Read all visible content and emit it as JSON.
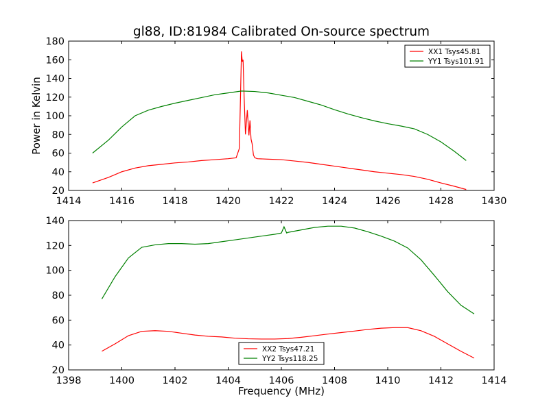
{
  "chart_data": [
    {
      "type": "line",
      "title": "gl88, ID:81984 Calibrated On-source spectrum",
      "xlabel": "",
      "ylabel": "Power in Kelvin",
      "xlim": [
        1414,
        1430
      ],
      "ylim": [
        20,
        180
      ],
      "xticks": [
        1414,
        1416,
        1418,
        1420,
        1422,
        1424,
        1426,
        1428,
        1430
      ],
      "yticks": [
        20,
        40,
        60,
        80,
        100,
        120,
        140,
        160,
        180
      ],
      "grid": false,
      "legend": "top-right",
      "series": [
        {
          "name": "XX1 Tsys45.81",
          "color": "#ff0000",
          "x": [
            1414.9,
            1415.5,
            1416.0,
            1416.5,
            1417.0,
            1417.5,
            1418.0,
            1418.5,
            1419.0,
            1419.5,
            1420.0,
            1420.3,
            1420.42,
            1420.5,
            1420.53,
            1420.56,
            1420.6,
            1420.65,
            1420.72,
            1420.78,
            1420.82,
            1420.86,
            1420.9,
            1420.95,
            1421.0,
            1421.1,
            1421.5,
            1422.0,
            1422.5,
            1423.0,
            1423.5,
            1424.0,
            1424.5,
            1425.0,
            1425.5,
            1426.0,
            1426.5,
            1427.0,
            1427.5,
            1428.0,
            1428.5,
            1428.95
          ],
          "values": [
            28,
            34,
            40,
            44,
            46.5,
            48,
            49.5,
            50.5,
            52,
            53,
            54,
            55,
            65,
            169,
            158,
            160,
            120,
            80,
            106,
            79,
            95,
            75,
            70,
            58,
            55,
            54,
            53.5,
            53,
            51.5,
            50,
            48,
            46,
            44,
            42,
            40,
            38.5,
            37,
            35,
            32,
            28,
            24.5,
            21
          ]
        },
        {
          "name": "YY1 Tsys101.91",
          "color": "#008000",
          "x": [
            1414.9,
            1415.5,
            1416.0,
            1416.5,
            1417.0,
            1417.5,
            1418.0,
            1418.5,
            1419.0,
            1419.5,
            1420.0,
            1420.5,
            1421.0,
            1421.5,
            1422.0,
            1422.5,
            1423.0,
            1423.5,
            1424.0,
            1424.5,
            1425.0,
            1425.5,
            1426.0,
            1426.5,
            1427.0,
            1427.5,
            1428.0,
            1428.5,
            1428.95
          ],
          "values": [
            60,
            74,
            88,
            100,
            106,
            110,
            113.5,
            116.5,
            119.5,
            122.5,
            124.5,
            126.5,
            126,
            124.5,
            122,
            119.5,
            115.5,
            111.5,
            106.5,
            102,
            98,
            94.5,
            91.5,
            89,
            86,
            80,
            72,
            62,
            52
          ]
        }
      ]
    },
    {
      "type": "line",
      "title": "",
      "xlabel": "Frequency (MHz)",
      "ylabel": "",
      "xlim": [
        1398,
        1414
      ],
      "ylim": [
        20,
        140
      ],
      "xticks": [
        1398,
        1400,
        1402,
        1404,
        1406,
        1408,
        1410,
        1412,
        1414
      ],
      "yticks": [
        20,
        40,
        60,
        80,
        100,
        120,
        140
      ],
      "grid": false,
      "legend": "bottom-center",
      "series": [
        {
          "name": "XX2 Tsys47.21",
          "color": "#ff0000",
          "x": [
            1399.25,
            1399.75,
            1400.25,
            1400.75,
            1401.25,
            1401.75,
            1402.25,
            1402.75,
            1403.25,
            1403.75,
            1404.25,
            1404.75,
            1405.25,
            1405.75,
            1406.25,
            1406.75,
            1407.25,
            1407.75,
            1408.25,
            1408.75,
            1409.25,
            1409.75,
            1410.25,
            1410.75,
            1411.25,
            1411.75,
            1412.25,
            1412.75,
            1413.25
          ],
          "values": [
            35,
            41,
            47.5,
            51,
            51.5,
            51,
            49.5,
            48,
            47,
            46.5,
            45.5,
            45,
            44.8,
            44.8,
            45.2,
            46.2,
            47.5,
            48.8,
            50,
            51.2,
            52.5,
            53.5,
            54,
            54,
            51.5,
            47,
            41,
            35,
            29.5
          ]
        },
        {
          "name": "YY2 Tsys118.25",
          "color": "#008000",
          "x": [
            1399.25,
            1399.75,
            1400.25,
            1400.75,
            1401.25,
            1401.75,
            1402.25,
            1402.75,
            1403.25,
            1403.75,
            1404.25,
            1404.75,
            1405.25,
            1405.75,
            1406.0,
            1406.1,
            1406.2,
            1406.25,
            1406.75,
            1407.25,
            1407.75,
            1408.25,
            1408.75,
            1409.25,
            1409.75,
            1410.25,
            1410.75,
            1411.25,
            1411.75,
            1412.25,
            1412.75,
            1413.25
          ],
          "values": [
            77,
            95,
            110,
            118.5,
            120.5,
            121.5,
            121.5,
            121,
            121.5,
            123,
            124.5,
            126,
            127.5,
            129,
            130,
            135,
            130,
            130.5,
            132.5,
            134.5,
            135.5,
            135.5,
            134,
            131,
            127.5,
            123.5,
            118,
            108.5,
            96,
            83,
            72,
            65
          ]
        }
      ]
    }
  ]
}
